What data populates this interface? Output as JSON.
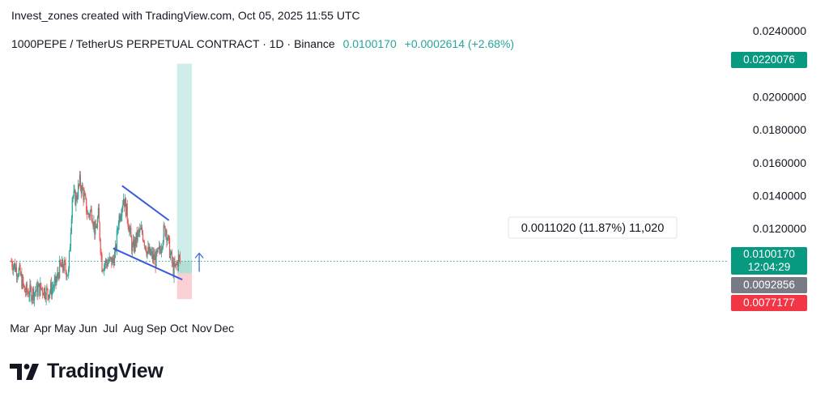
{
  "credit": "Invest_zones created with TradingView.com, Oct 05, 2025 11:55 UTC",
  "header": {
    "symbol": "1000PEPE / TetherUS PERPETUAL CONTRACT · 1D · Binance",
    "price": "0.0100170",
    "change": "+0.0002614 (+2.68%)"
  },
  "colors": {
    "up": "#26a69a",
    "down": "#ef5350",
    "channel": "#3b5bdb",
    "target_zone": "#cfeee9",
    "stop_zone": "#fbd0d4",
    "current_box": "#089981",
    "entry_box": "#787b86",
    "stop_box": "#f23645"
  },
  "price_labels": {
    "target": "0.0220076",
    "current": "0.0100170",
    "countdown": "12:04:29",
    "entry": "0.0092856",
    "stop": "0.0077177"
  },
  "measure_label": "0.0011020 (11.87%) 11,020",
  "logo_text": "TradingView",
  "chart_data": {
    "type": "candlestick",
    "yaxis_ticks": [
      0.012,
      0.014,
      0.016,
      0.018,
      0.02,
      0.022,
      0.024
    ],
    "yaxis_labels": [
      "0.0120000",
      "0.0140000",
      "0.0160000",
      "0.0180000",
      "0.0200000",
      "0.0240000"
    ],
    "xaxis_labels": [
      "Mar",
      "Apr",
      "May",
      "Jun",
      "Jul",
      "Aug",
      "Sep",
      "Oct",
      "Nov",
      "Dec"
    ],
    "ylim": [
      0.0066,
      0.0243
    ],
    "grid": false,
    "price_path": [
      {
        "date": "2025-02-20",
        "price": 0.01
      },
      {
        "date": "2025-03-03",
        "price": 0.0093
      },
      {
        "date": "2025-03-10",
        "price": 0.0082
      },
      {
        "date": "2025-03-20",
        "price": 0.0081
      },
      {
        "date": "2025-04-01",
        "price": 0.0084
      },
      {
        "date": "2025-04-10",
        "price": 0.0081
      },
      {
        "date": "2025-04-20",
        "price": 0.0086
      },
      {
        "date": "2025-04-26",
        "price": 0.0096
      },
      {
        "date": "2025-05-01",
        "price": 0.0097
      },
      {
        "date": "2025-05-08",
        "price": 0.0093
      },
      {
        "date": "2025-05-10",
        "price": 0.0112
      },
      {
        "date": "2025-05-13",
        "price": 0.014
      },
      {
        "date": "2025-05-18",
        "price": 0.0138
      },
      {
        "date": "2025-05-23",
        "price": 0.0148
      },
      {
        "date": "2025-05-28",
        "price": 0.0141
      },
      {
        "date": "2025-06-03",
        "price": 0.0128
      },
      {
        "date": "2025-06-08",
        "price": 0.0131
      },
      {
        "date": "2025-06-13",
        "price": 0.0117
      },
      {
        "date": "2025-06-17",
        "price": 0.0128
      },
      {
        "date": "2025-06-22",
        "price": 0.0098
      },
      {
        "date": "2025-07-01",
        "price": 0.01
      },
      {
        "date": "2025-07-06",
        "price": 0.01
      },
      {
        "date": "2025-07-10",
        "price": 0.0105
      },
      {
        "date": "2025-07-14",
        "price": 0.0125
      },
      {
        "date": "2025-07-21",
        "price": 0.0139
      },
      {
        "date": "2025-07-26",
        "price": 0.0128
      },
      {
        "date": "2025-08-02",
        "price": 0.0107
      },
      {
        "date": "2025-08-10",
        "price": 0.0117
      },
      {
        "date": "2025-08-15",
        "price": 0.0118
      },
      {
        "date": "2025-08-22",
        "price": 0.0106
      },
      {
        "date": "2025-09-02",
        "price": 0.0101
      },
      {
        "date": "2025-09-08",
        "price": 0.0107
      },
      {
        "date": "2025-09-13",
        "price": 0.0118
      },
      {
        "date": "2025-09-16",
        "price": 0.012
      },
      {
        "date": "2025-09-22",
        "price": 0.0104
      },
      {
        "date": "2025-09-26",
        "price": 0.0095
      },
      {
        "date": "2025-09-29",
        "price": 0.0096
      },
      {
        "date": "2025-10-03",
        "price": 0.0102
      },
      {
        "date": "2025-10-05",
        "price": 0.01
      }
    ],
    "trendlines": [
      {
        "name": "upper",
        "from": {
          "date": "2025-07-19",
          "price": 0.0146
        },
        "to": {
          "date": "2025-09-20",
          "price": 0.0125
        }
      },
      {
        "name": "lower",
        "from": {
          "date": "2025-07-07",
          "price": 0.0108
        },
        "to": {
          "date": "2025-10-08",
          "price": 0.0089
        }
      }
    ],
    "long_position": {
      "start": "2025-10-01",
      "end": "2025-10-21",
      "target": 0.0220076,
      "entry": 0.0092856,
      "stop": 0.0077177
    },
    "current_price": 0.010017
  }
}
